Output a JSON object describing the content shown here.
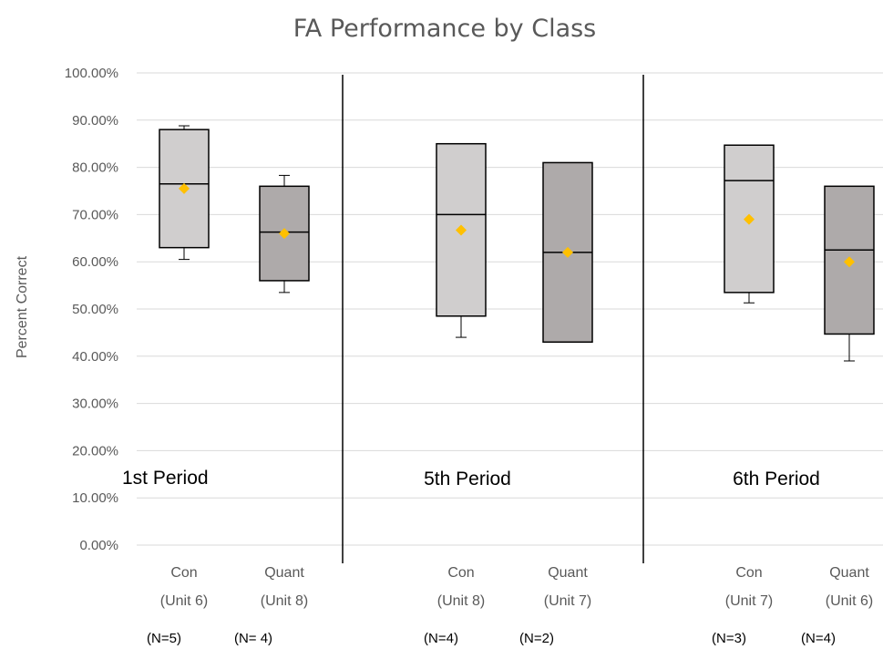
{
  "chart_data": {
    "type": "box",
    "title": "FA Performance by Class",
    "ylabel": "Percent Correct",
    "xlabel": "",
    "ylim": [
      0,
      1
    ],
    "y_ticks": [
      "0.00%",
      "10.00%",
      "20.00%",
      "30.00%",
      "40.00%",
      "50.00%",
      "60.00%",
      "70.00%",
      "80.00%",
      "90.00%",
      "100.00%"
    ],
    "grid": true,
    "groups": [
      {
        "label": "1st Period",
        "boxes": [
          {
            "line1": "Con",
            "line2": "(Unit 6)",
            "n": "(N=5)",
            "fill": "#d0cece",
            "min": 0.605,
            "q1": 0.63,
            "median": 0.765,
            "q3": 0.88,
            "max": 0.888,
            "mean": 0.755
          },
          {
            "line1": "Quant",
            "line2": "(Unit 8)",
            "n": "(N= 4)",
            "fill": "#aeaaaa",
            "min": 0.535,
            "q1": 0.56,
            "median": 0.663,
            "q3": 0.76,
            "max": 0.783,
            "mean": 0.66
          }
        ]
      },
      {
        "label": "5th Period",
        "boxes": [
          {
            "line1": "Con",
            "line2": "(Unit 8)",
            "n": "(N=4)",
            "fill": "#d0cece",
            "min": 0.44,
            "q1": 0.485,
            "median": 0.7,
            "q3": 0.85,
            "max": 0.85,
            "mean": 0.667
          },
          {
            "line1": "Quant",
            "line2": "(Unit 7)",
            "n": "(N=2)",
            "fill": "#aeaaaa",
            "min": 0.43,
            "q1": 0.43,
            "median": 0.62,
            "q3": 0.81,
            "max": 0.81,
            "mean": 0.62
          }
        ]
      },
      {
        "label": "6th Period",
        "boxes": [
          {
            "line1": "Con",
            "line2": "(Unit 7)",
            "n": "(N=3)",
            "fill": "#d0cece",
            "min": 0.513,
            "q1": 0.535,
            "median": 0.772,
            "q3": 0.847,
            "max": 0.847,
            "mean": 0.69
          },
          {
            "line1": "Quant",
            "line2": "(Unit 6)",
            "n": "(N=4)",
            "fill": "#aeaaaa",
            "min": 0.39,
            "q1": 0.447,
            "median": 0.625,
            "q3": 0.76,
            "max": 0.76,
            "mean": 0.6
          }
        ]
      }
    ],
    "colors": {
      "mean_marker": "#ffc000",
      "box_stroke": "#000000",
      "grid": "#d9d9d9",
      "separator": "#000000"
    }
  }
}
